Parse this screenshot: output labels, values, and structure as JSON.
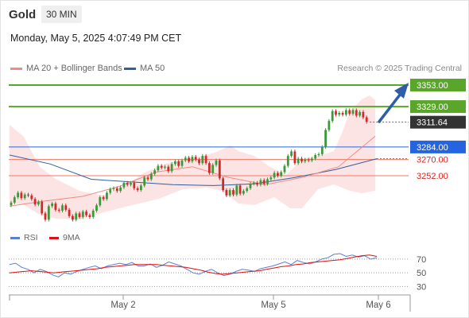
{
  "header": {
    "instrument": "Gold",
    "timeframe": "30 MIN"
  },
  "datetime": "Monday, May 5, 2025 4:07:49 PM CET",
  "legend": {
    "bollinger": {
      "label": "MA 20 + Bollinger Bands",
      "color": "#f08a84"
    },
    "ma50": {
      "label": "MA 50",
      "color": "#2f5f9e"
    }
  },
  "credit": "Research © 2025 Trading Central",
  "rsi_legend": {
    "rsi": {
      "label": "RSI",
      "color": "#5b7fd6"
    },
    "ma": {
      "label": "9MA",
      "color": "#dd1111"
    }
  },
  "chart_data": {
    "type": "candlestick",
    "x_tick_labels": [
      "May 2",
      "May 5",
      "May 6"
    ],
    "price_levels": [
      {
        "value": "3353.00",
        "kind": "resistance",
        "color": "#5aa62a"
      },
      {
        "value": "3329.00",
        "kind": "resistance",
        "color": "#5aa62a"
      },
      {
        "value": "3311.64",
        "kind": "current",
        "color": "#333333"
      },
      {
        "value": "3284.00",
        "kind": "pivot",
        "color": "#2464e0"
      },
      {
        "value": "3270.00",
        "kind": "support",
        "color": "#ee7766"
      },
      {
        "value": "3252.00",
        "kind": "support",
        "color": "#ee7766"
      }
    ],
    "rsi_levels": [
      "70",
      "50",
      "30"
    ],
    "candles_close": [
      3222,
      3228,
      3233,
      3227,
      3231,
      3230,
      3226,
      3220,
      3223,
      3210,
      3203,
      3218,
      3221,
      3214,
      3213,
      3219,
      3214,
      3207,
      3203,
      3210,
      3206,
      3212,
      3208,
      3206,
      3213,
      3219,
      3228,
      3226,
      3233,
      3237,
      3238,
      3235,
      3239,
      3244,
      3242,
      3244,
      3238,
      3236,
      3241,
      3250,
      3248,
      3254,
      3258,
      3263,
      3261,
      3262,
      3257,
      3265,
      3268,
      3263,
      3269,
      3272,
      3268,
      3273,
      3270,
      3266,
      3274,
      3266,
      3255,
      3264,
      3269,
      3249,
      3236,
      3230,
      3236,
      3231,
      3241,
      3232,
      3235,
      3238,
      3243,
      3244,
      3242,
      3247,
      3243,
      3248,
      3250,
      3255,
      3252,
      3256,
      3263,
      3274,
      3279,
      3266,
      3271,
      3268,
      3270,
      3269,
      3271,
      3275,
      3276,
      3284,
      3303,
      3313,
      3324,
      3320,
      3322,
      3320,
      3325,
      3321,
      3325,
      3319,
      3323,
      3317,
      3312
    ],
    "ma50": [
      3275,
      3265,
      3248,
      3245,
      3242,
      3241,
      3243,
      3250,
      3259,
      3271
    ],
    "bb_mid": [
      3218,
      3224,
      3229,
      3240,
      3256,
      3262,
      3250,
      3242,
      3250,
      3262,
      3296
    ],
    "rsi": [
      62,
      64,
      58,
      55,
      50,
      55,
      52,
      47,
      44,
      50,
      48,
      52,
      55,
      58,
      60,
      56,
      60,
      62,
      64,
      62,
      65,
      60,
      60,
      63,
      58,
      61,
      66,
      63,
      60,
      55,
      50,
      48,
      52,
      55,
      50,
      46,
      48,
      52,
      55,
      54,
      52,
      56,
      58,
      60,
      63,
      66,
      62,
      68,
      65,
      63,
      66,
      70,
      72,
      77,
      78,
      74,
      76,
      73,
      75,
      70,
      72
    ],
    "rsi_ma": [
      50,
      51,
      52,
      53,
      52,
      51,
      50,
      51,
      52,
      53,
      54,
      55,
      56,
      58,
      59,
      60,
      61,
      62,
      62,
      62,
      62,
      61,
      60,
      59,
      58,
      56,
      54,
      51,
      49,
      48,
      49,
      50,
      51,
      52,
      53,
      55,
      57,
      59,
      60,
      62,
      63,
      65,
      66,
      67,
      68,
      69,
      71,
      73,
      75,
      76,
      74
    ]
  }
}
